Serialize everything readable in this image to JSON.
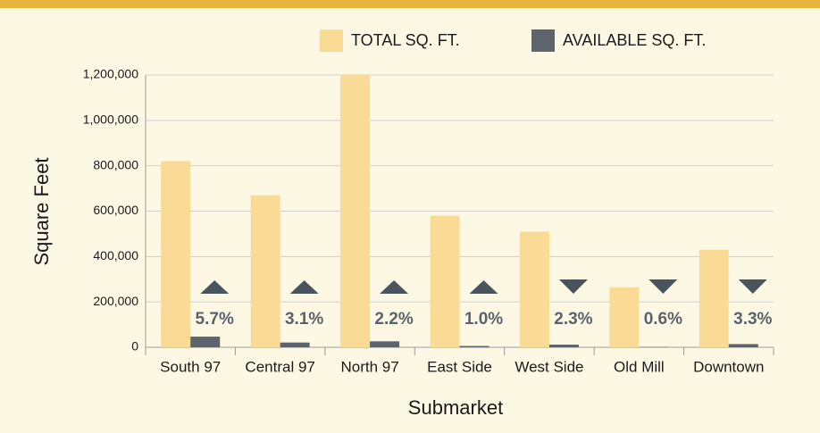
{
  "chart_data": {
    "type": "bar",
    "categories": [
      "South 97",
      "Central 97",
      "North 97",
      "East Side",
      "West Side",
      "Old Mill",
      "Downtown"
    ],
    "series": [
      {
        "name": "TOTAL SQ. FT.",
        "color": "#fadb96",
        "values": [
          820000,
          670000,
          1200000,
          580000,
          510000,
          265000,
          430000
        ]
      },
      {
        "name": "AVAILABLE SQ. FT.",
        "color": "#5c656d",
        "values": [
          47000,
          21000,
          26400,
          5800,
          11700,
          1600,
          14200
        ]
      }
    ],
    "annotations": [
      {
        "text": "5.7%",
        "direction": "up"
      },
      {
        "text": "3.1%",
        "direction": "up"
      },
      {
        "text": "2.2%",
        "direction": "up"
      },
      {
        "text": "1.0%",
        "direction": "up"
      },
      {
        "text": "2.3%",
        "direction": "down"
      },
      {
        "text": "0.6%",
        "direction": "down"
      },
      {
        "text": "3.3%",
        "direction": "down"
      }
    ],
    "x_label": "Submarket",
    "y_label": "Square Feet",
    "ylim": [
      0,
      1200000
    ],
    "yticks": [
      {
        "value": 0,
        "label": "0"
      },
      {
        "value": 200000,
        "label": "200,000"
      },
      {
        "value": 400000,
        "label": "400,000"
      },
      {
        "value": 600000,
        "label": "600,000"
      },
      {
        "value": 800000,
        "label": "800,000"
      },
      {
        "value": 1000000,
        "label": "1,000,000"
      },
      {
        "value": 1200000,
        "label": "1,200,000"
      }
    ],
    "grid": true
  }
}
